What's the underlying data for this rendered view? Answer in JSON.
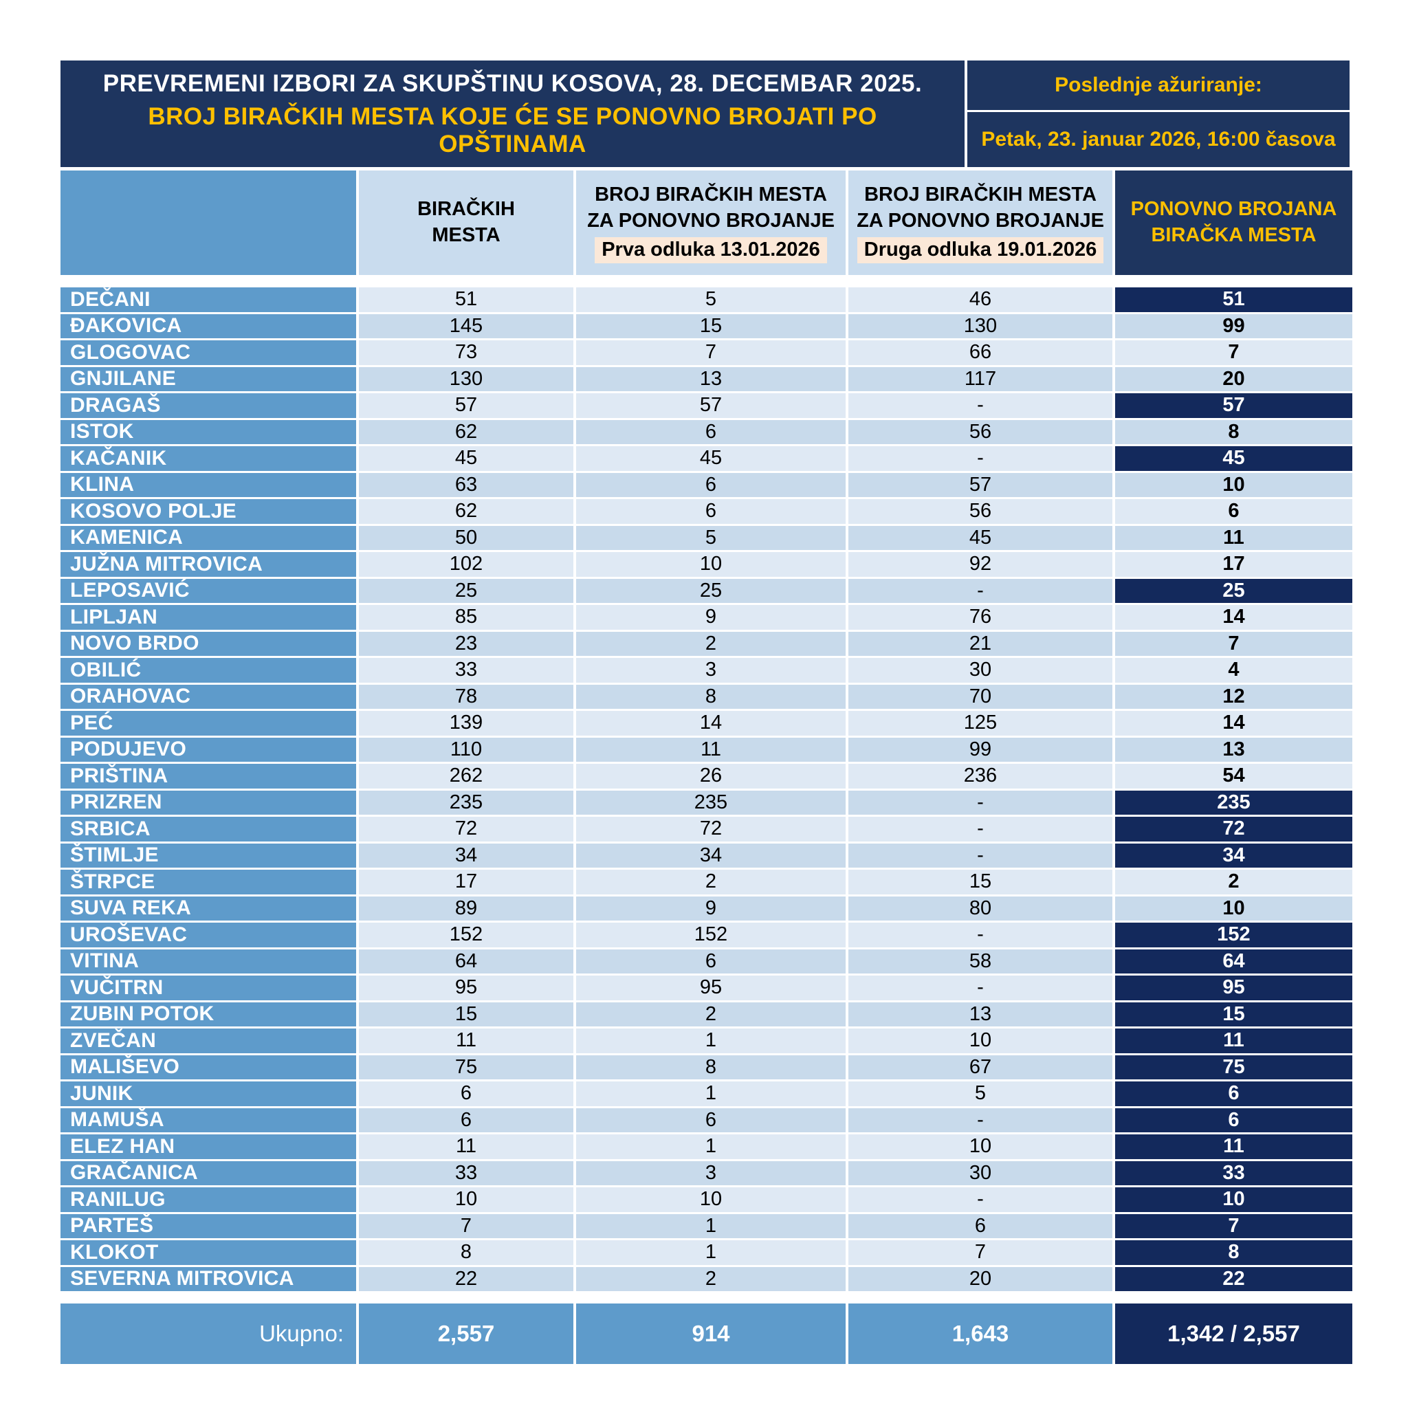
{
  "header": {
    "title_line1": "PREVREMENI IZBORI ZA SKUPŠTINU KOSOVA, 28. DECEMBAR 2025.",
    "title_line2": "BROJ BIRAČKIH MESTA KOJE ĆE SE PONOVNO BROJATI PO OPŠTINAMA",
    "last_update_label": "Poslednje ažuriranje:",
    "last_update_value": "Petak, 23. januar 2026, 16:00 časova"
  },
  "columns": {
    "col_total": {
      "line1": "BIRAČKIH",
      "line2": "MESTA"
    },
    "col_first": {
      "line1": "BROJ BIRAČKIH MESTA",
      "line2": "ZA PONOVNO BROJANJE",
      "badge": "Prva odluka 13.01.2026"
    },
    "col_second": {
      "line1": "BROJ BIRAČKIH MESTA",
      "line2": "ZA PONOVNO BROJANJE",
      "badge": "Druga odluka 19.01.2026"
    },
    "col_recounted": {
      "line1": "PONOVNO BROJANA",
      "line2": "BIRAČKA MESTA"
    }
  },
  "rows": [
    {
      "name": "DEČANI",
      "total": 51,
      "first": 5,
      "second": 46,
      "recounted": 51
    },
    {
      "name": "ĐAKOVICA",
      "total": 145,
      "first": 15,
      "second": 130,
      "recounted": 99
    },
    {
      "name": "GLOGOVAC",
      "total": 73,
      "first": 7,
      "second": 66,
      "recounted": 7
    },
    {
      "name": "GNJILANE",
      "total": 130,
      "first": 13,
      "second": 117,
      "recounted": 20
    },
    {
      "name": "DRAGAŠ",
      "total": 57,
      "first": 57,
      "second": "-",
      "recounted": 57
    },
    {
      "name": "ISTOK",
      "total": 62,
      "first": 6,
      "second": 56,
      "recounted": 8
    },
    {
      "name": "KAČANIK",
      "total": 45,
      "first": 45,
      "second": "-",
      "recounted": 45
    },
    {
      "name": "KLINA",
      "total": 63,
      "first": 6,
      "second": 57,
      "recounted": 10
    },
    {
      "name": "KOSOVO POLJE",
      "total": 62,
      "first": 6,
      "second": 56,
      "recounted": 6
    },
    {
      "name": "KAMENICA",
      "total": 50,
      "first": 5,
      "second": 45,
      "recounted": 11
    },
    {
      "name": "JUŽNA MITROVICA",
      "total": 102,
      "first": 10,
      "second": 92,
      "recounted": 17
    },
    {
      "name": "LEPOSAVIĆ",
      "total": 25,
      "first": 25,
      "second": "-",
      "recounted": 25
    },
    {
      "name": "LIPLJAN",
      "total": 85,
      "first": 9,
      "second": 76,
      "recounted": 14
    },
    {
      "name": "NOVO BRDO",
      "total": 23,
      "first": 2,
      "second": 21,
      "recounted": 7
    },
    {
      "name": "OBILIĆ",
      "total": 33,
      "first": 3,
      "second": 30,
      "recounted": 4
    },
    {
      "name": "ORAHOVAC",
      "total": 78,
      "first": 8,
      "second": 70,
      "recounted": 12
    },
    {
      "name": "PEĆ",
      "total": 139,
      "first": 14,
      "second": 125,
      "recounted": 14
    },
    {
      "name": "PODUJEVO",
      "total": 110,
      "first": 11,
      "second": 99,
      "recounted": 13
    },
    {
      "name": "PRIŠTINA",
      "total": 262,
      "first": 26,
      "second": 236,
      "recounted": 54
    },
    {
      "name": "PRIZREN",
      "total": 235,
      "first": 235,
      "second": "-",
      "recounted": 235
    },
    {
      "name": "SRBICA",
      "total": 72,
      "first": 72,
      "second": "-",
      "recounted": 72
    },
    {
      "name": "ŠTIMLJE",
      "total": 34,
      "first": 34,
      "second": "-",
      "recounted": 34
    },
    {
      "name": "ŠTRPCE",
      "total": 17,
      "first": 2,
      "second": 15,
      "recounted": 2
    },
    {
      "name": "SUVA REKA",
      "total": 89,
      "first": 9,
      "second": 80,
      "recounted": 10
    },
    {
      "name": "UROŠEVAC",
      "total": 152,
      "first": 152,
      "second": "-",
      "recounted": 152
    },
    {
      "name": "VITINA",
      "total": 64,
      "first": 6,
      "second": 58,
      "recounted": 64
    },
    {
      "name": "VUČITRN",
      "total": 95,
      "first": 95,
      "second": "-",
      "recounted": 95
    },
    {
      "name": "ZUBIN POTOK",
      "total": 15,
      "first": 2,
      "second": 13,
      "recounted": 15
    },
    {
      "name": "ZVEČAN",
      "total": 11,
      "first": 1,
      "second": 10,
      "recounted": 11
    },
    {
      "name": "MALIŠEVO",
      "total": 75,
      "first": 8,
      "second": 67,
      "recounted": 75
    },
    {
      "name": "JUNIK",
      "total": 6,
      "first": 1,
      "second": 5,
      "recounted": 6
    },
    {
      "name": "MAMUŠA",
      "total": 6,
      "first": 6,
      "second": "-",
      "recounted": 6
    },
    {
      "name": "ELEZ HAN",
      "total": 11,
      "first": 1,
      "second": 10,
      "recounted": 11
    },
    {
      "name": "GRAČANICA",
      "total": 33,
      "first": 3,
      "second": 30,
      "recounted": 33
    },
    {
      "name": "RANILUG",
      "total": 10,
      "first": 10,
      "second": "-",
      "recounted": 10
    },
    {
      "name": "PARTEŠ",
      "total": 7,
      "first": 1,
      "second": 6,
      "recounted": 7
    },
    {
      "name": "KLOKOT",
      "total": 8,
      "first": 1,
      "second": 7,
      "recounted": 8
    },
    {
      "name": "SEVERNA MITROVICA",
      "total": 22,
      "first": 2,
      "second": 20,
      "recounted": 22
    }
  ],
  "totals": {
    "label": "Ukupno:",
    "total": "2,557",
    "first": "914",
    "second": "1,643",
    "recounted": "1,342 / 2,557"
  },
  "colors": {
    "navy_header": "#1E355F",
    "navy_cell": "#13295C",
    "medium_blue": "#5E9BCB",
    "row_light": "#DFE9F4",
    "row_shade": "#C8DAEB",
    "header_light": "#C9DCEE",
    "badge_cream": "#FBE8D8",
    "accent_gold": "#FFC000"
  }
}
